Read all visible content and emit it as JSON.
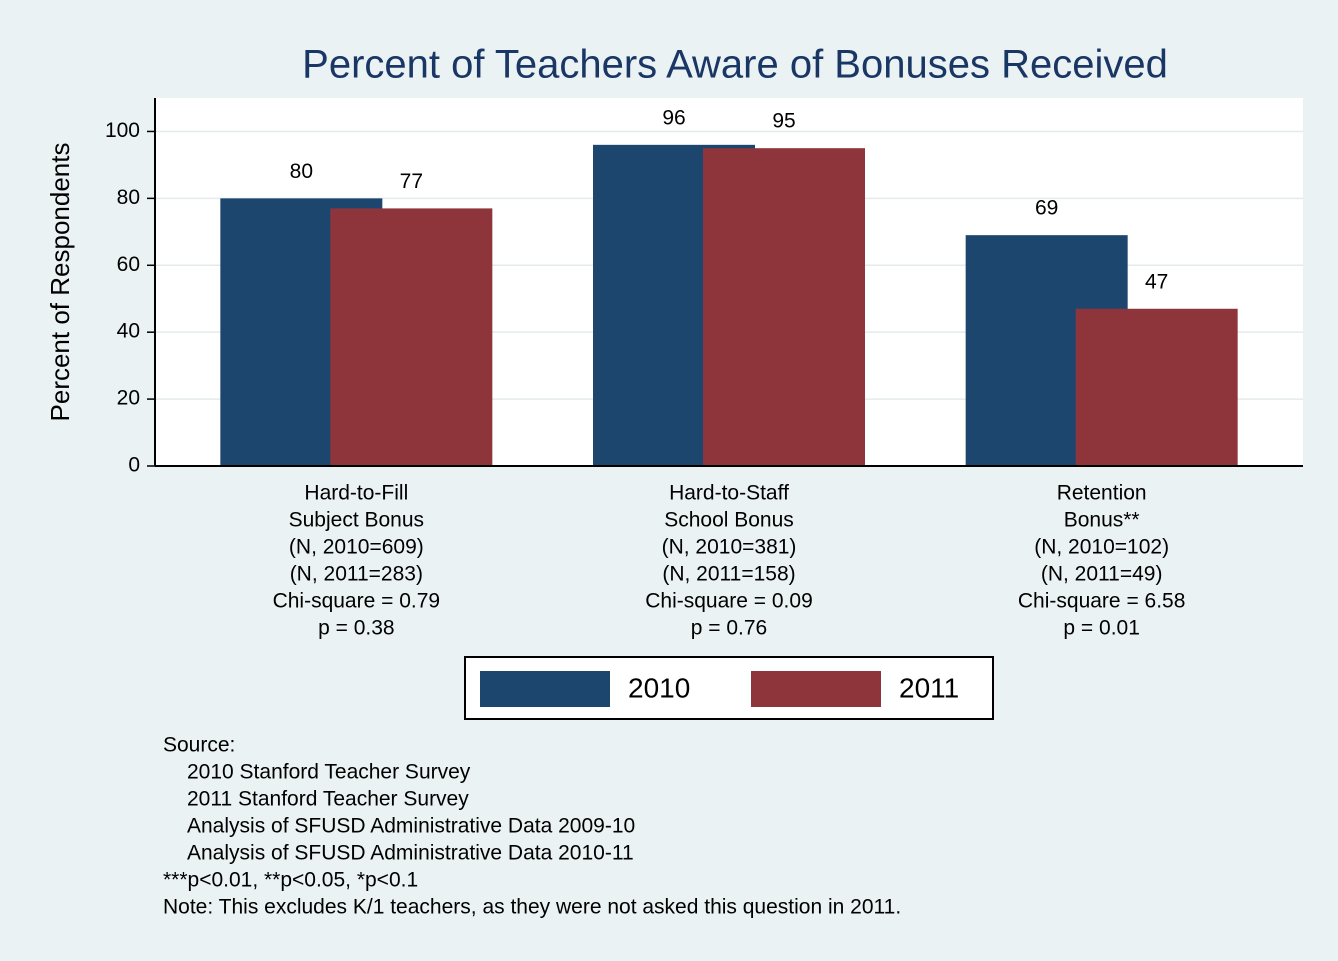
{
  "chart_data": {
    "type": "bar",
    "title": "Percent of Teachers Aware of Bonuses Received",
    "y_label": "Percent of Respondents",
    "categories": [
      [
        "Hard-to-Fill",
        "Subject Bonus",
        "(N, 2010=609)",
        "(N, 2011=283)",
        "Chi-square = 0.79",
        "p = 0.38"
      ],
      [
        "Hard-to-Staff",
        "School Bonus",
        "(N, 2010=381)",
        "(N, 2011=158)",
        "Chi-square = 0.09",
        "p = 0.76"
      ],
      [
        "Retention",
        "Bonus**",
        "(N, 2010=102)",
        "(N, 2011=49)",
        "Chi-square = 6.58",
        "p = 0.01"
      ]
    ],
    "series": [
      {
        "name": "2010",
        "color": "#1d466f",
        "values": [
          80,
          96,
          69
        ]
      },
      {
        "name": "2011",
        "color": "#8e353c",
        "values": [
          77,
          95,
          47
        ]
      }
    ],
    "ylim": [
      0,
      110
    ],
    "yticks": [
      0,
      20,
      40,
      60,
      80,
      100
    ],
    "grid": true,
    "legend": "bottom",
    "source_label": "Source:",
    "sources": [
      "2010 Stanford Teacher Survey",
      "2011 Stanford Teacher Survey",
      "Analysis of SFUSD Administrative Data 2009-10",
      "Analysis of SFUSD Administrative Data 2010-11"
    ],
    "footnotes": [
      "***p<0.01, **p<0.05, *p<0.1",
      "Note: This excludes K/1 teachers, as they were not asked this question in 2011."
    ]
  }
}
